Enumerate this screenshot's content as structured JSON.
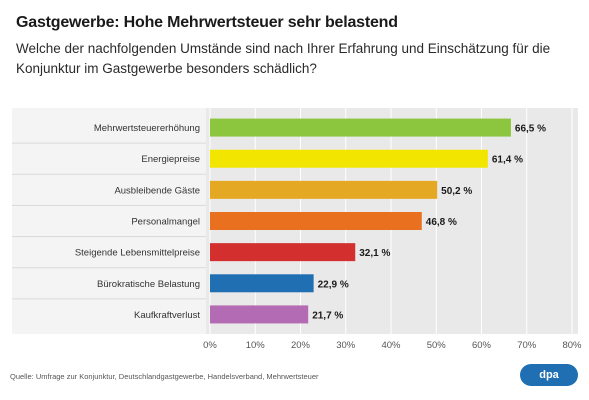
{
  "header": {
    "title": "Gastgewerbe: Hohe Mehrwertsteuer sehr belastend",
    "subtitle": "Welche der nachfolgenden Umstände sind nach Ihrer Erfahrung und Einschätzung für die Konjunktur im Gastgewerbe besonders schädlich?"
  },
  "footer": {
    "source": "Quelle: Umfrage zur Konjunktur, Deutschlandgastgewerbe, Handelsverband, Mehrwertsteuer",
    "logo_text": "dpa"
  },
  "chart_data": {
    "type": "bar",
    "orientation": "horizontal",
    "categories": [
      "Mehrwertsteuererhöhung",
      "Energiepreise",
      "Ausbleibende Gäste",
      "Personalmangel",
      "Steigende Lebensmittelpreise",
      "Bürokratische Belastung",
      "Kaufkraftverlust"
    ],
    "values": [
      66.5,
      61.4,
      50.2,
      46.8,
      32.1,
      22.9,
      21.7
    ],
    "value_labels": [
      "66,5 %",
      "61,4 %",
      "50,2 %",
      "46,8 %",
      "32,1 %",
      "22,9 %",
      "21,7 %"
    ],
    "colors": [
      "#8cc63f",
      "#f2e500",
      "#e5a823",
      "#e9701f",
      "#d32f2f",
      "#1f6fb2",
      "#b36bb4"
    ],
    "xlim": [
      0,
      80
    ],
    "xticks": [
      0,
      10,
      20,
      30,
      40,
      50,
      60,
      70,
      80
    ],
    "xtick_labels": [
      "0%",
      "10%",
      "20%",
      "30%",
      "40%",
      "50%",
      "60%",
      "70%",
      "80%"
    ],
    "grid": true,
    "title": "Gastgewerbe: Hohe Mehrwertsteuer sehr belastend",
    "xlabel": "",
    "ylabel": ""
  }
}
